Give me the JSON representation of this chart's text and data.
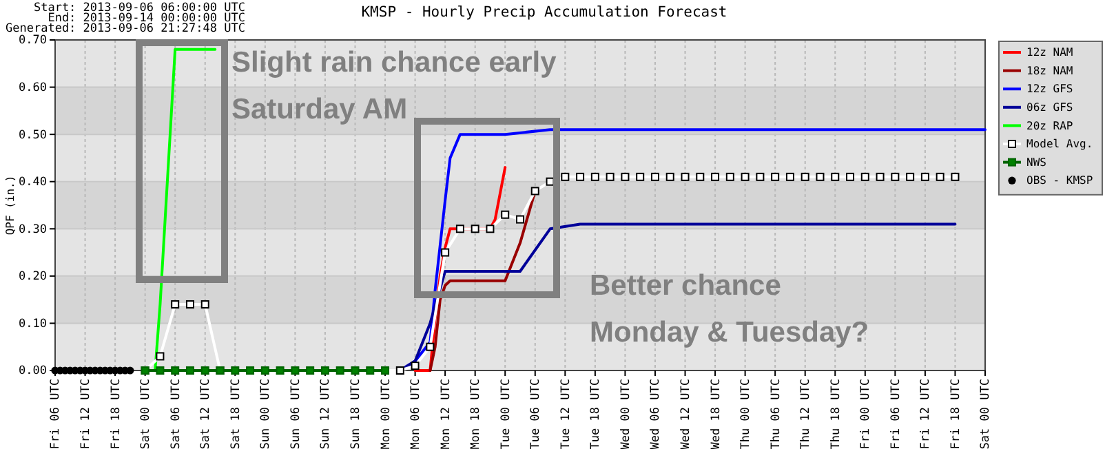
{
  "chart_data": {
    "type": "line",
    "title": "KMSP - Hourly Precip Accumulation Forecast",
    "ylabel": "QPF (in.)",
    "annotations": [
      "Start: 2013-09-06 06:00:00 UTC",
      "End: 2013-09-14 00:00:00 UTC",
      "Generated: 2013-09-06 21:27:48 UTC",
      "Slight rain chance early Saturday AM",
      "Better chance Monday & Tuesday?"
    ],
    "xlim": [
      "2013-09-06T06:00",
      "2013-09-14T00:00"
    ],
    "xticks": [
      {
        "value": "2013-09-06T06:00",
        "label": "Fri 06 UTC"
      },
      {
        "value": "2013-09-06T12:00",
        "label": "Fri 12 UTC"
      },
      {
        "value": "2013-09-06T18:00",
        "label": "Fri 18 UTC"
      },
      {
        "value": "2013-09-07T00:00",
        "label": "Sat 00 UTC"
      },
      {
        "value": "2013-09-07T06:00",
        "label": "Sat 06 UTC"
      },
      {
        "value": "2013-09-07T12:00",
        "label": "Sat 12 UTC"
      },
      {
        "value": "2013-09-07T18:00",
        "label": "Sat 18 UTC"
      },
      {
        "value": "2013-09-08T00:00",
        "label": "Sun 00 UTC"
      },
      {
        "value": "2013-09-08T06:00",
        "label": "Sun 06 UTC"
      },
      {
        "value": "2013-09-08T12:00",
        "label": "Sun 12 UTC"
      },
      {
        "value": "2013-09-08T18:00",
        "label": "Sun 18 UTC"
      },
      {
        "value": "2013-09-09T00:00",
        "label": "Mon 00 UTC"
      },
      {
        "value": "2013-09-09T06:00",
        "label": "Mon 06 UTC"
      },
      {
        "value": "2013-09-09T12:00",
        "label": "Mon 12 UTC"
      },
      {
        "value": "2013-09-09T18:00",
        "label": "Mon 18 UTC"
      },
      {
        "value": "2013-09-10T00:00",
        "label": "Tue 00 UTC"
      },
      {
        "value": "2013-09-10T06:00",
        "label": "Tue 06 UTC"
      },
      {
        "value": "2013-09-10T12:00",
        "label": "Tue 12 UTC"
      },
      {
        "value": "2013-09-10T18:00",
        "label": "Tue 18 UTC"
      },
      {
        "value": "2013-09-11T00:00",
        "label": "Wed 00 UTC"
      },
      {
        "value": "2013-09-11T06:00",
        "label": "Wed 06 UTC"
      },
      {
        "value": "2013-09-11T12:00",
        "label": "Wed 12 UTC"
      },
      {
        "value": "2013-09-11T18:00",
        "label": "Wed 18 UTC"
      },
      {
        "value": "2013-09-12T00:00",
        "label": "Thu 00 UTC"
      },
      {
        "value": "2013-09-12T06:00",
        "label": "Thu 06 UTC"
      },
      {
        "value": "2013-09-12T12:00",
        "label": "Thu 12 UTC"
      },
      {
        "value": "2013-09-12T18:00",
        "label": "Thu 18 UTC"
      },
      {
        "value": "2013-09-13T00:00",
        "label": "Fri 00 UTC"
      },
      {
        "value": "2013-09-13T06:00",
        "label": "Fri 06 UTC"
      },
      {
        "value": "2013-09-13T12:00",
        "label": "Fri 12 UTC"
      },
      {
        "value": "2013-09-13T18:00",
        "label": "Fri 18 UTC"
      },
      {
        "value": "2013-09-14T00:00",
        "label": "Sat 00 UTC"
      }
    ],
    "ylim": [
      0,
      0.7
    ],
    "yticks": [
      {
        "value": 0,
        "label": "0.00"
      },
      {
        "value": 0.1,
        "label": "0.10"
      },
      {
        "value": 0.2,
        "label": "0.20"
      },
      {
        "value": 0.3,
        "label": "0.30"
      },
      {
        "value": 0.4,
        "label": "0.40"
      },
      {
        "value": 0.5,
        "label": "0.50"
      },
      {
        "value": 0.6,
        "label": "0.60"
      },
      {
        "value": 0.7,
        "label": "0.70"
      }
    ],
    "grid": true,
    "legend": "right",
    "line_style": "solid",
    "series": [
      {
        "name": "12z NAM",
        "color": "#ff0000",
        "marker": "none",
        "x": [
          "2013-09-09T06:00",
          "2013-09-09T09:00",
          "2013-09-09T10:00",
          "2013-09-09T11:00",
          "2013-09-09T12:00",
          "2013-09-09T13:00",
          "2013-09-09T21:00",
          "2013-09-09T22:00",
          "2013-09-10T00:00"
        ],
        "values": [
          0,
          0,
          0.11,
          0.2,
          0.26,
          0.3,
          0.3,
          0.32,
          0.43
        ]
      },
      {
        "name": "18z NAM",
        "color": "#990000",
        "marker": "none",
        "x": [
          "2013-09-09T09:00",
          "2013-09-09T10:00",
          "2013-09-09T11:00",
          "2013-09-09T12:00",
          "2013-09-09T13:00",
          "2013-09-10T00:00",
          "2013-09-10T03:00",
          "2013-09-10T06:00"
        ],
        "values": [
          0,
          0.05,
          0.15,
          0.18,
          0.19,
          0.19,
          0.27,
          0.38
        ]
      },
      {
        "name": "12z GFS",
        "color": "#0000ff",
        "marker": "none",
        "x": [
          "2013-09-09T03:00",
          "2013-09-09T06:00",
          "2013-09-09T09:00",
          "2013-09-09T10:00",
          "2013-09-09T12:00",
          "2013-09-09T13:00",
          "2013-09-09T15:00",
          "2013-09-10T00:00",
          "2013-09-10T09:00",
          "2013-09-10T18:00",
          "2013-09-14T00:00"
        ],
        "values": [
          0,
          0.02,
          0.06,
          0.17,
          0.36,
          0.45,
          0.5,
          0.5,
          0.51,
          0.51,
          0.51
        ]
      },
      {
        "name": "06z GFS",
        "color": "#000099",
        "marker": "none",
        "x": [
          "2013-09-09T03:00",
          "2013-09-09T06:00",
          "2013-09-09T09:00",
          "2013-09-09T12:00",
          "2013-09-10T03:00",
          "2013-09-10T09:00",
          "2013-09-10T15:00",
          "2013-09-13T18:00"
        ],
        "values": [
          0,
          0.02,
          0.1,
          0.21,
          0.21,
          0.3,
          0.31,
          0.31
        ]
      },
      {
        "name": "20z RAP",
        "color": "#00ff00",
        "marker": "none",
        "x": [
          "2013-09-07T02:00",
          "2013-09-07T03:00",
          "2013-09-07T04:00",
          "2013-09-07T05:00",
          "2013-09-07T06:00",
          "2013-09-07T14:00"
        ],
        "values": [
          0,
          0.14,
          0.32,
          0.5,
          0.68,
          0.68
        ]
      },
      {
        "name": "Model Avg.",
        "color": "#ffffff",
        "marker": "square",
        "x": [
          "2013-09-07T00:00",
          "2013-09-07T03:00",
          "2013-09-07T06:00",
          "2013-09-07T09:00",
          "2013-09-07T12:00",
          "2013-09-07T15:00",
          "2013-09-09T03:00",
          "2013-09-09T06:00",
          "2013-09-09T09:00",
          "2013-09-09T12:00",
          "2013-09-09T15:00",
          "2013-09-09T18:00",
          "2013-09-09T21:00",
          "2013-09-10T00:00",
          "2013-09-10T03:00",
          "2013-09-10T06:00",
          "2013-09-10T09:00",
          "2013-09-10T12:00",
          "2013-09-10T15:00",
          "2013-09-10T18:00",
          "2013-09-10T21:00",
          "2013-09-11T00:00",
          "2013-09-11T03:00",
          "2013-09-11T06:00",
          "2013-09-11T09:00",
          "2013-09-11T12:00",
          "2013-09-11T15:00",
          "2013-09-11T18:00",
          "2013-09-11T21:00",
          "2013-09-12T00:00",
          "2013-09-12T03:00",
          "2013-09-12T06:00",
          "2013-09-12T09:00",
          "2013-09-12T12:00",
          "2013-09-12T15:00",
          "2013-09-12T18:00",
          "2013-09-12T21:00",
          "2013-09-13T00:00",
          "2013-09-13T03:00",
          "2013-09-13T06:00",
          "2013-09-13T09:00",
          "2013-09-13T12:00",
          "2013-09-13T15:00",
          "2013-09-13T18:00"
        ],
        "values": [
          0,
          0.03,
          0.14,
          0.14,
          0.14,
          0,
          0,
          0.01,
          0.05,
          0.25,
          0.3,
          0.3,
          0.3,
          0.33,
          0.32,
          0.38,
          0.4,
          0.41,
          0.41,
          0.41,
          0.41,
          0.41,
          0.41,
          0.41,
          0.41,
          0.41,
          0.41,
          0.41,
          0.41,
          0.41,
          0.41,
          0.41,
          0.41,
          0.41,
          0.41,
          0.41,
          0.41,
          0.41,
          0.41,
          0.41,
          0.41,
          0.41,
          0.41,
          0.41
        ]
      },
      {
        "name": "NWS",
        "color": "#006400",
        "marker": "square",
        "x": [
          "2013-09-07T00:00",
          "2013-09-07T03:00",
          "2013-09-07T06:00",
          "2013-09-07T09:00",
          "2013-09-07T12:00",
          "2013-09-07T15:00",
          "2013-09-07T18:00",
          "2013-09-07T21:00",
          "2013-09-08T00:00",
          "2013-09-08T03:00",
          "2013-09-08T06:00",
          "2013-09-08T09:00",
          "2013-09-08T12:00",
          "2013-09-08T15:00",
          "2013-09-08T18:00",
          "2013-09-08T21:00",
          "2013-09-09T00:00"
        ],
        "values": [
          0,
          0,
          0,
          0,
          0,
          0,
          0,
          0,
          0,
          0,
          0,
          0,
          0,
          0,
          0,
          0,
          0
        ]
      },
      {
        "name": "OBS - KMSP",
        "type": "scatter",
        "color": "#000000",
        "marker": "circle",
        "x": [
          "2013-09-06T06:00",
          "2013-09-06T07:00",
          "2013-09-06T08:00",
          "2013-09-06T09:00",
          "2013-09-06T10:00",
          "2013-09-06T11:00",
          "2013-09-06T12:00",
          "2013-09-06T13:00",
          "2013-09-06T14:00",
          "2013-09-06T15:00",
          "2013-09-06T16:00",
          "2013-09-06T17:00",
          "2013-09-06T18:00",
          "2013-09-06T19:00",
          "2013-09-06T20:00",
          "2013-09-06T21:00"
        ],
        "values": [
          0,
          0,
          0,
          0,
          0,
          0,
          0,
          0,
          0,
          0,
          0,
          0,
          0,
          0,
          0,
          0
        ]
      }
    ]
  }
}
